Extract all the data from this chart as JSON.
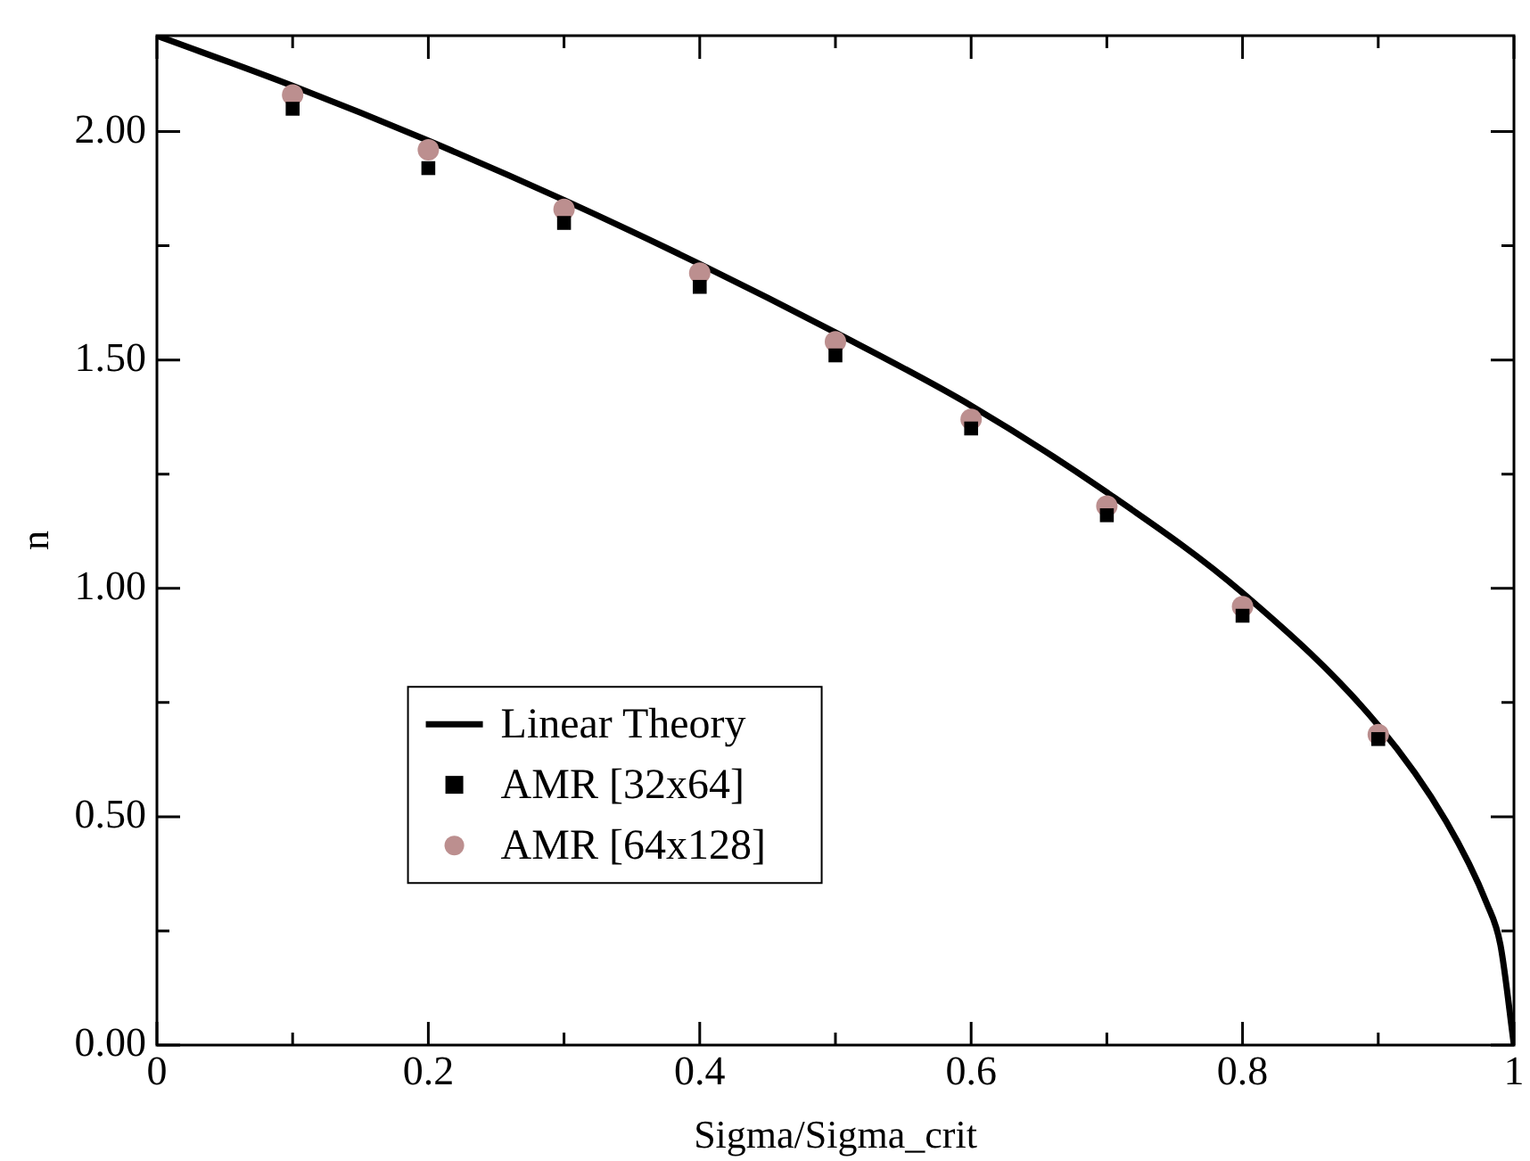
{
  "chart_data": {
    "type": "scatter",
    "xlabel": "Sigma/Sigma_crit",
    "ylabel": "n",
    "xlim": [
      0,
      1
    ],
    "ylim": [
      0,
      2.21
    ],
    "xticks": [
      0,
      {
        "value": 0.1,
        "label": null
      },
      0.2,
      {
        "value": 0.3,
        "label": null
      },
      0.4,
      {
        "value": 0.5,
        "label": null
      },
      0.6,
      {
        "value": 0.7,
        "label": null
      },
      0.8,
      {
        "value": 0.9,
        "label": null
      },
      1
    ],
    "yticks": [
      {
        "value": 0,
        "label": "0.00"
      },
      {
        "value": 0.25,
        "label": null
      },
      {
        "value": 0.5,
        "label": "0.50"
      },
      {
        "value": 0.75,
        "label": null
      },
      {
        "value": 1,
        "label": "1.00"
      },
      {
        "value": 1.25,
        "label": null
      },
      {
        "value": 1.5,
        "label": "1.50"
      },
      {
        "value": 1.75,
        "label": null
      },
      {
        "value": 2,
        "label": "2.00"
      }
    ],
    "grid": false,
    "legend": "bottom left",
    "series": [
      {
        "name": "Linear Theory",
        "type": "line",
        "color": "#000000",
        "marker": "none",
        "line_style": "solid",
        "x": [
          0,
          0.1,
          0.2,
          0.3,
          0.4,
          0.5,
          0.6,
          0.7,
          0.8,
          0.9,
          0.95,
          0.98,
          0.99,
          1
        ],
        "values": [
          2.21,
          2.1,
          1.98,
          1.85,
          1.71,
          1.56,
          1.4,
          1.21,
          0.99,
          0.7,
          0.49,
          0.31,
          0.22,
          0
        ]
      },
      {
        "name": "AMR [32x64]",
        "type": "scatter",
        "color": "#000000",
        "marker": "square",
        "x": [
          0.1,
          0.2,
          0.3,
          0.4,
          0.5,
          0.6,
          0.7,
          0.8,
          0.9
        ],
        "values": [
          2.05,
          1.92,
          1.8,
          1.66,
          1.51,
          1.35,
          1.16,
          0.94,
          0.67
        ]
      },
      {
        "name": "AMR [64x128]",
        "type": "scatter",
        "color": "#bc8f8f",
        "marker": "circle",
        "x": [
          0.1,
          0.2,
          0.3,
          0.4,
          0.5,
          0.6,
          0.7,
          0.8,
          0.9
        ],
        "values": [
          2.08,
          1.96,
          1.83,
          1.69,
          1.54,
          1.37,
          1.18,
          0.96,
          0.68
        ]
      }
    ]
  }
}
